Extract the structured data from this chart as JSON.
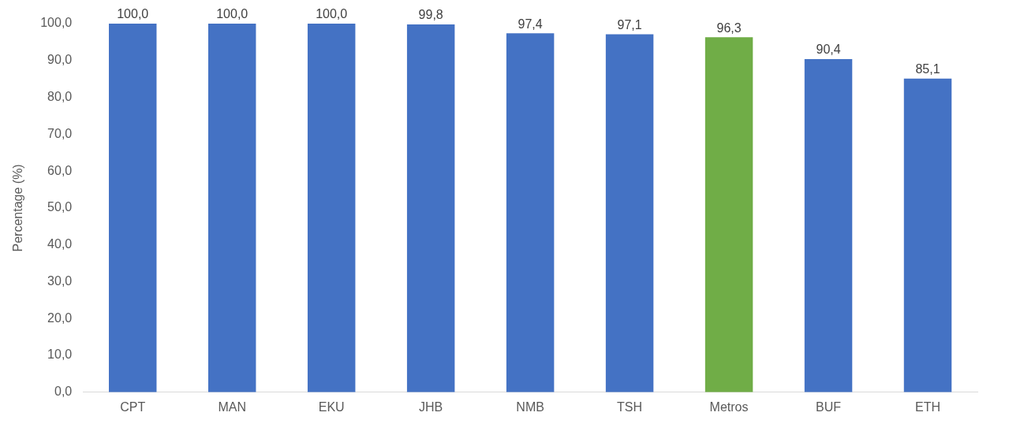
{
  "chart_data": {
    "type": "bar",
    "ylabel": "Percentage (%)",
    "categories": [
      "CPT",
      "MAN",
      "EKU",
      "JHB",
      "NMB",
      "TSH",
      "Metros",
      "BUF",
      "ETH"
    ],
    "values": [
      100.0,
      100.0,
      100.0,
      99.8,
      97.4,
      97.1,
      96.3,
      90.4,
      85.1
    ],
    "value_labels": [
      "100,0",
      "100,0",
      "100,0",
      "99,8",
      "97,4",
      "97,1",
      "96,3",
      "90,4",
      "85,1"
    ],
    "colors": [
      "#4472c4",
      "#4472c4",
      "#4472c4",
      "#4472c4",
      "#4472c4",
      "#4472c4",
      "#70ad47",
      "#4472c4",
      "#4472c4"
    ],
    "ylim": [
      0,
      100
    ],
    "yticks": [
      {
        "value": 0,
        "label": "0,0"
      },
      {
        "value": 10,
        "label": "10,0"
      },
      {
        "value": 20,
        "label": "20,0"
      },
      {
        "value": 30,
        "label": "30,0"
      },
      {
        "value": 40,
        "label": "40,0"
      },
      {
        "value": 50,
        "label": "50,0"
      },
      {
        "value": 60,
        "label": "60,0"
      },
      {
        "value": 70,
        "label": "70,0"
      },
      {
        "value": 80,
        "label": "80,0"
      },
      {
        "value": 90,
        "label": "90,0"
      },
      {
        "value": 100,
        "label": "100,0"
      }
    ],
    "grid": false,
    "legend": false
  }
}
